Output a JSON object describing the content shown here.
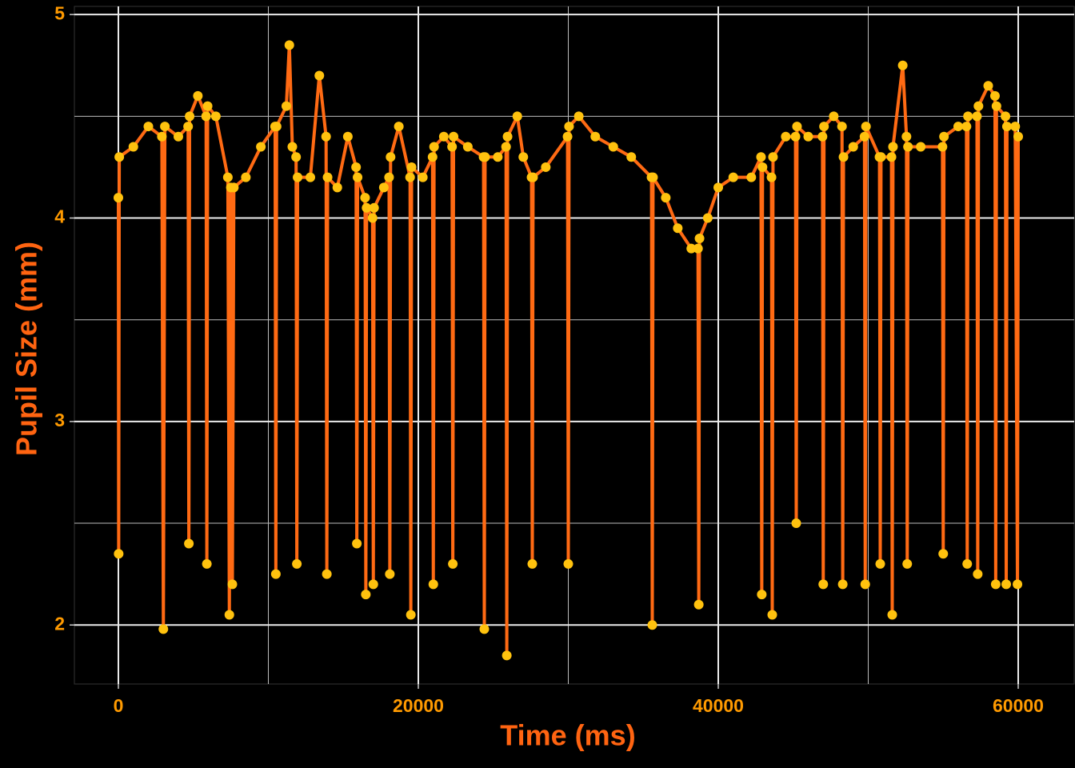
{
  "chart_data": {
    "type": "line",
    "markers": true,
    "x_label": "Time (ms)",
    "y_label": "Pupil Size (mm)",
    "xlim": [
      -2933,
      63733
    ],
    "ylim": [
      1.71,
      5.04
    ],
    "xticks": [
      0,
      20000,
      40000,
      60000
    ],
    "yticks": [
      2,
      3,
      4,
      5
    ],
    "x_minor_grid": [
      10000,
      30000,
      50000
    ],
    "y_minor_grid": [
      2.5,
      3.5,
      4.5
    ],
    "grid": true,
    "background": "#000000",
    "x": [
      0,
      20,
      60,
      1000,
      2000,
      2900,
      3000,
      3100,
      4000,
      4650,
      4700,
      4750,
      5300,
      5850,
      5900,
      5950,
      6500,
      7300,
      7400,
      7500,
      7600,
      7700,
      8500,
      9500,
      10450,
      10500,
      10550,
      11200,
      11400,
      11600,
      11850,
      11900,
      11950,
      12800,
      13400,
      13850,
      13900,
      13950,
      14600,
      15300,
      15850,
      15900,
      15950,
      16450,
      16500,
      16550,
      16950,
      17000,
      17050,
      17700,
      18050,
      18100,
      18150,
      18700,
      19450,
      19500,
      19550,
      20300,
      20950,
      21000,
      21050,
      21700,
      22250,
      22300,
      22350,
      23300,
      24350,
      24400,
      24450,
      25300,
      25850,
      25900,
      25950,
      26600,
      27000,
      27550,
      27600,
      27650,
      28500,
      29950,
      30000,
      30050,
      30700,
      31800,
      33000,
      34200,
      35550,
      35600,
      35650,
      36500,
      37300,
      38200,
      38650,
      38700,
      38750,
      39300,
      40000,
      41000,
      42200,
      42850,
      42900,
      42950,
      43550,
      43600,
      43650,
      44500,
      45150,
      45200,
      45250,
      46000,
      46950,
      47000,
      47050,
      47700,
      48250,
      48300,
      48350,
      49000,
      49750,
      49800,
      49850,
      50750,
      50800,
      50850,
      51550,
      51600,
      51650,
      52300,
      52550,
      52600,
      52650,
      53500,
      54950,
      55000,
      55050,
      56000,
      56550,
      56600,
      56650,
      57250,
      57300,
      57350,
      58000,
      58450,
      58500,
      58550,
      59150,
      59200,
      59250,
      59800,
      59950,
      60000
    ],
    "series": [
      {
        "color": "#ff6a13",
        "marker_color": "#ffc20e",
        "values": [
          4.1,
          2.35,
          4.3,
          4.35,
          4.45,
          4.4,
          1.98,
          4.45,
          4.4,
          4.45,
          2.4,
          4.5,
          4.6,
          4.5,
          2.3,
          4.55,
          4.5,
          4.2,
          2.05,
          4.15,
          2.2,
          4.15,
          4.2,
          4.35,
          4.45,
          2.25,
          4.45,
          4.55,
          4.85,
          4.35,
          4.3,
          2.3,
          4.2,
          4.2,
          4.7,
          4.4,
          2.25,
          4.2,
          4.15,
          4.4,
          4.25,
          2.4,
          4.2,
          4.1,
          2.15,
          4.05,
          4.0,
          2.2,
          4.05,
          4.15,
          4.2,
          2.25,
          4.3,
          4.45,
          4.2,
          2.05,
          4.25,
          4.2,
          4.3,
          2.2,
          4.35,
          4.4,
          4.35,
          2.3,
          4.4,
          4.35,
          4.3,
          1.98,
          4.3,
          4.3,
          4.35,
          1.85,
          4.4,
          4.5,
          4.3,
          4.2,
          2.3,
          4.2,
          4.25,
          4.4,
          2.3,
          4.45,
          4.5,
          4.4,
          4.35,
          4.3,
          4.2,
          2.0,
          4.2,
          4.1,
          3.95,
          3.85,
          3.85,
          2.1,
          3.9,
          4.0,
          4.15,
          4.2,
          4.2,
          4.3,
          2.15,
          4.25,
          4.2,
          2.05,
          4.3,
          4.4,
          4.4,
          2.5,
          4.45,
          4.4,
          4.4,
          2.2,
          4.45,
          4.5,
          4.45,
          2.2,
          4.3,
          4.35,
          4.4,
          2.2,
          4.45,
          4.3,
          2.3,
          4.3,
          4.3,
          2.05,
          4.35,
          4.75,
          4.4,
          2.3,
          4.35,
          4.35,
          4.35,
          2.35,
          4.4,
          4.45,
          4.45,
          2.3,
          4.5,
          4.5,
          2.25,
          4.55,
          4.65,
          4.6,
          2.2,
          4.55,
          4.5,
          2.2,
          4.45,
          4.45,
          2.2,
          4.4
        ]
      }
    ]
  }
}
